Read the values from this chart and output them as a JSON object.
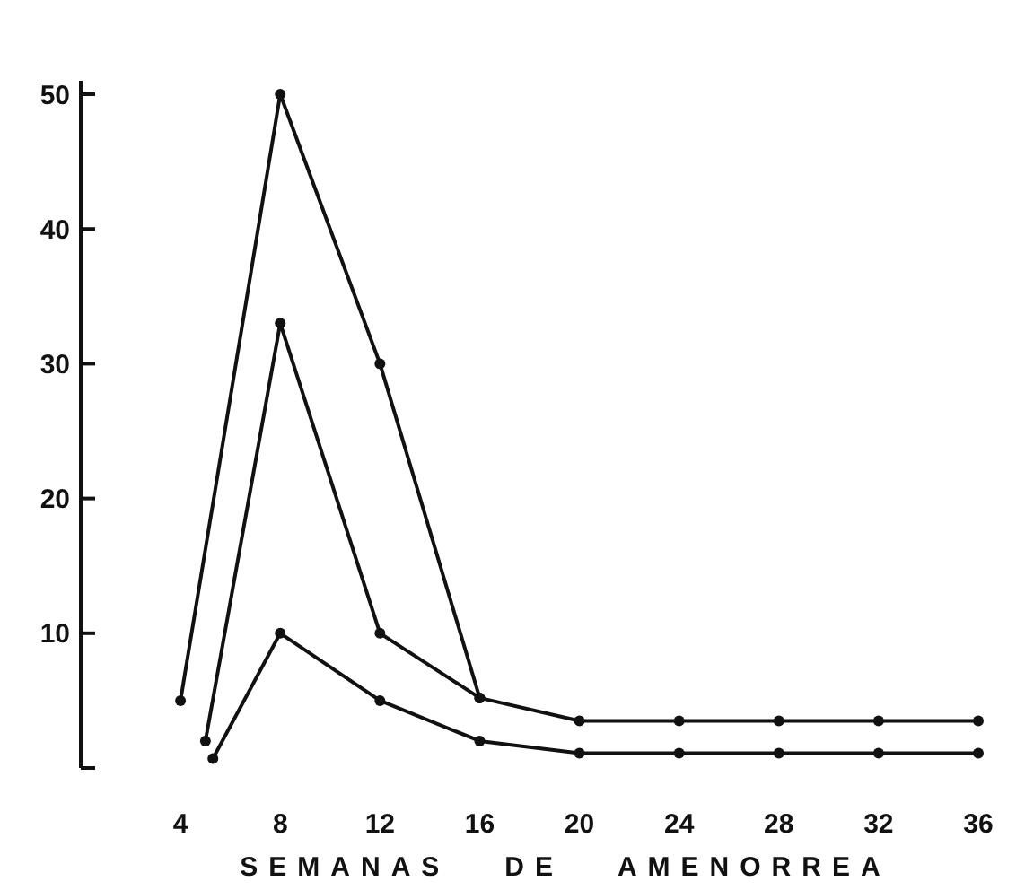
{
  "chart_data": {
    "type": "line",
    "xlabel": "SEMANAS   DE   AMENORREA",
    "xlim": [
      0,
      36
    ],
    "ylim": [
      0,
      51
    ],
    "xticks": [
      4,
      8,
      12,
      16,
      20,
      24,
      28,
      32,
      36
    ],
    "yticks": [
      {
        "value": 0,
        "label": null
      },
      10,
      20,
      30,
      40,
      50
    ],
    "marker": "circle",
    "line_style": "solid",
    "grid": false,
    "series": [
      {
        "color": "#111111",
        "x": [
          4,
          8,
          12,
          16,
          20,
          24,
          28,
          32,
          36
        ],
        "values": [
          5,
          50,
          30,
          5.2,
          3.5,
          3.5,
          3.5,
          3.5,
          3.5
        ]
      },
      {
        "color": "#111111",
        "x": [
          5,
          8,
          12,
          16
        ],
        "values": [
          2,
          33,
          10,
          5.2
        ]
      },
      {
        "color": "#111111",
        "x": [
          5.3,
          8,
          12,
          16,
          20,
          24,
          28,
          32,
          36
        ],
        "values": [
          0.7,
          10,
          5,
          2,
          1.1,
          1.1,
          1.1,
          1.1,
          1.1
        ]
      }
    ]
  }
}
